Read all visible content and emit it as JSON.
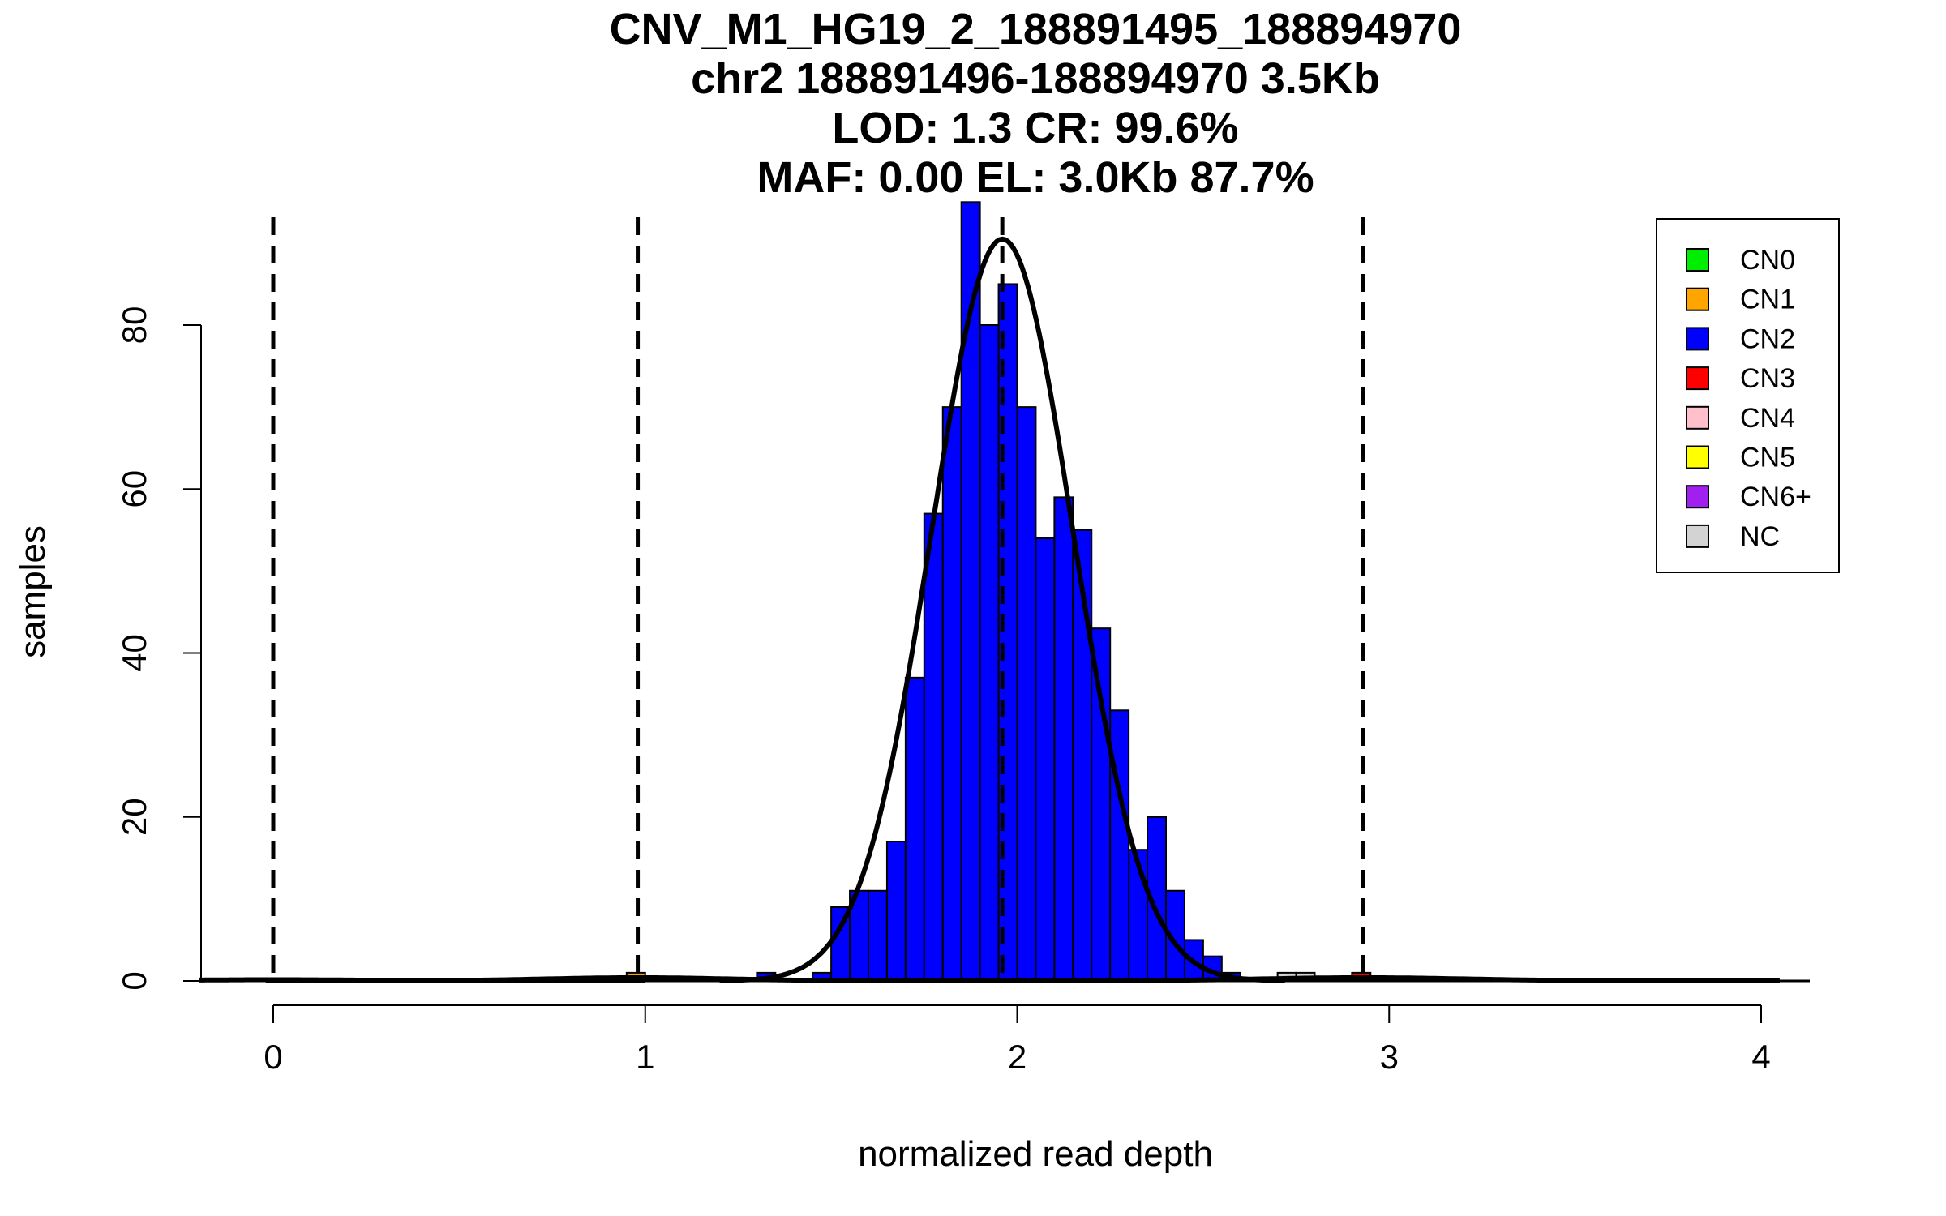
{
  "chart_data": {
    "type": "bar",
    "title_lines": [
      "CNV_M1_HG19_2_188891495_188894970",
      "chr2 188891496-188894970 3.5Kb",
      "LOD: 1.3 CR: 99.6%",
      "MAF: 0.00 EL: 3.0Kb 87.7%"
    ],
    "xlabel": "normalized read depth",
    "ylabel": "samples",
    "xlim": [
      -0.2,
      4.13
    ],
    "ylim": [
      0,
      95
    ],
    "x_ticks": [
      0,
      1,
      2,
      3,
      4
    ],
    "y_ticks": [
      0,
      20,
      40,
      60,
      80
    ],
    "bin_width": 0.05,
    "bins": [
      {
        "x0": 0.95,
        "count": 1,
        "cn": "CN1"
      },
      {
        "x0": 1.3,
        "count": 1,
        "cn": "CN2"
      },
      {
        "x0": 1.45,
        "count": 1,
        "cn": "CN2"
      },
      {
        "x0": 1.5,
        "count": 9,
        "cn": "CN2"
      },
      {
        "x0": 1.55,
        "count": 11,
        "cn": "CN2"
      },
      {
        "x0": 1.6,
        "count": 11,
        "cn": "CN2"
      },
      {
        "x0": 1.65,
        "count": 17,
        "cn": "CN2"
      },
      {
        "x0": 1.7,
        "count": 37,
        "cn": "CN2"
      },
      {
        "x0": 1.75,
        "count": 57,
        "cn": "CN2"
      },
      {
        "x0": 1.8,
        "count": 70,
        "cn": "CN2"
      },
      {
        "x0": 1.85,
        "count": 95,
        "cn": "CN2"
      },
      {
        "x0": 1.9,
        "count": 80,
        "cn": "CN2"
      },
      {
        "x0": 1.95,
        "count": 85,
        "cn": "CN2"
      },
      {
        "x0": 2.0,
        "count": 70,
        "cn": "CN2"
      },
      {
        "x0": 2.05,
        "count": 54,
        "cn": "CN2"
      },
      {
        "x0": 2.1,
        "count": 59,
        "cn": "CN2"
      },
      {
        "x0": 2.15,
        "count": 55,
        "cn": "CN2"
      },
      {
        "x0": 2.2,
        "count": 43,
        "cn": "CN2"
      },
      {
        "x0": 2.25,
        "count": 33,
        "cn": "CN2"
      },
      {
        "x0": 2.3,
        "count": 16,
        "cn": "CN2"
      },
      {
        "x0": 2.35,
        "count": 20,
        "cn": "CN2"
      },
      {
        "x0": 2.4,
        "count": 11,
        "cn": "CN2"
      },
      {
        "x0": 2.45,
        "count": 5,
        "cn": "CN2"
      },
      {
        "x0": 2.5,
        "count": 3,
        "cn": "CN2"
      },
      {
        "x0": 2.55,
        "count": 1,
        "cn": "CN2"
      },
      {
        "x0": 2.7,
        "count": 1,
        "cn": "NC"
      },
      {
        "x0": 2.75,
        "count": 1,
        "cn": "NC"
      },
      {
        "x0": 2.9,
        "count": 1,
        "cn": "CN3"
      }
    ],
    "cn_means": [
      0,
      0.98,
      1.96,
      2.93
    ],
    "fit_curves": [
      {
        "name": "CN0",
        "mean": 0.0,
        "sd": 0.25,
        "peak": 0.15
      },
      {
        "name": "CN1",
        "mean": 0.98,
        "sd": 0.25,
        "peak": 0.4
      },
      {
        "name": "CN2",
        "mean": 1.96,
        "sd": 0.19,
        "peak": 90.5
      },
      {
        "name": "CN3",
        "mean": 2.93,
        "sd": 0.28,
        "peak": 0.4
      }
    ],
    "legend_position": "top-right",
    "legend": [
      {
        "label": "CN0",
        "color": "#00ee00"
      },
      {
        "label": "CN1",
        "color": "#ffa500"
      },
      {
        "label": "CN2",
        "color": "#0000ff"
      },
      {
        "label": "CN3",
        "color": "#ff0000"
      },
      {
        "label": "CN4",
        "color": "#ffc0cb"
      },
      {
        "label": "CN5",
        "color": "#ffff00"
      },
      {
        "label": "CN6+",
        "color": "#a020f0"
      },
      {
        "label": "NC",
        "color": "#d3d3d3"
      }
    ]
  }
}
